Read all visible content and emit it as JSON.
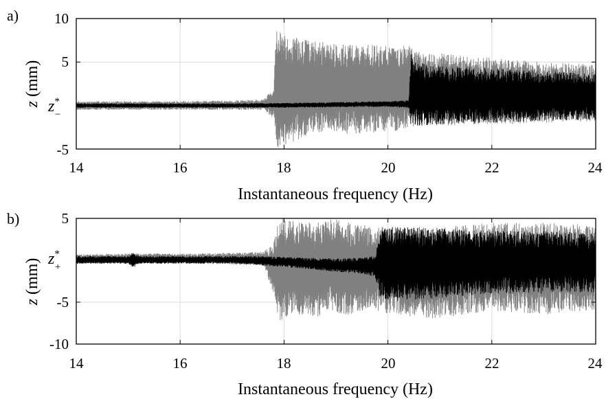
{
  "figure": {
    "colors": {
      "forward_sweep": "#808080",
      "backward_sweep": "#000000",
      "grid": "#dcdcdc"
    },
    "panels": [
      {
        "label": "a)",
        "xlabel": "Instantaneous frequency (Hz)",
        "ylabel_var": "z",
        "ylabel_unit": "(mm)",
        "zstar_base": "z",
        "zstar_sup": "*",
        "zstar_sub": "−",
        "xticks": [
          "14",
          "16",
          "18",
          "20",
          "22",
          "24"
        ],
        "yticks": [
          "10",
          "5",
          "-5"
        ]
      },
      {
        "label": "b)",
        "xlabel": "Instantaneous frequency (Hz)",
        "ylabel_var": "z",
        "ylabel_unit": "(mm)",
        "zstar_base": "z",
        "zstar_sup": "*",
        "zstar_sub": "+",
        "xticks": [
          "14",
          "16",
          "18",
          "20",
          "22",
          "24"
        ],
        "yticks": [
          "5",
          "-5",
          "-10"
        ]
      }
    ]
  },
  "chart_data": [
    {
      "type": "area",
      "panel": "a)",
      "xlabel": "Instantaneous frequency (Hz)",
      "ylabel": "z (mm)",
      "xlim": [
        14,
        24
      ],
      "ylim": [
        -5,
        10
      ],
      "xticks": [
        14,
        16,
        18,
        20,
        22,
        24
      ],
      "yticks": [
        -5,
        5,
        10
      ],
      "y_marker": {
        "label": "z*−",
        "value": 0
      },
      "grid": true,
      "series": [
        {
          "color": "#808080",
          "x": [
            14.0,
            15.0,
            16.0,
            17.0,
            17.6,
            17.8,
            17.85,
            18.0,
            18.5,
            19.0,
            19.5,
            20.0,
            20.45,
            20.5,
            21.0,
            22.0,
            23.0,
            24.0
          ],
          "ymax": [
            0.5,
            0.5,
            0.5,
            0.6,
            0.7,
            2.0,
            8.8,
            8.2,
            7.5,
            7.2,
            7.0,
            7.0,
            6.8,
            6.2,
            6.0,
            5.5,
            5.0,
            4.7
          ],
          "ymin": [
            -0.5,
            -0.5,
            -0.5,
            -0.5,
            -0.5,
            -1.5,
            -5.0,
            -4.6,
            -3.5,
            -3.3,
            -3.2,
            -3.0,
            -2.8,
            -2.4,
            -2.3,
            -2.2,
            -2.0,
            -1.8
          ]
        },
        {
          "color": "#000000",
          "x": [
            14.0,
            15.0,
            16.0,
            17.0,
            18.0,
            19.0,
            20.0,
            20.4,
            20.45,
            20.5,
            21.0,
            22.0,
            23.0,
            24.0
          ],
          "ymax": [
            0.25,
            0.25,
            0.25,
            0.25,
            0.3,
            0.4,
            0.5,
            0.6,
            6.0,
            5.0,
            4.6,
            4.3,
            4.0,
            3.6
          ],
          "ymin": [
            -0.25,
            -0.25,
            -0.25,
            -0.25,
            -0.25,
            -0.2,
            -0.15,
            -0.3,
            -2.6,
            -2.4,
            -2.2,
            -2.0,
            -1.8,
            -1.6
          ]
        }
      ]
    },
    {
      "type": "area",
      "panel": "b)",
      "xlabel": "Instantaneous frequency (Hz)",
      "ylabel": "z (mm)",
      "xlim": [
        14,
        24
      ],
      "ylim": [
        -10,
        5
      ],
      "xticks": [
        14,
        16,
        18,
        20,
        22,
        24
      ],
      "yticks": [
        -10,
        -5,
        5
      ],
      "y_marker": {
        "label": "z*+",
        "value": 0
      },
      "grid": true,
      "series": [
        {
          "color": "#808080",
          "x": [
            14.0,
            15.0,
            16.0,
            17.0,
            17.6,
            17.8,
            17.9,
            18.2,
            18.6,
            18.9,
            19.3,
            19.7,
            19.8,
            20.0,
            21.0,
            22.0,
            23.0,
            24.0
          ],
          "ymax": [
            0.7,
            0.8,
            0.8,
            0.9,
            1.0,
            2.0,
            5.0,
            5.0,
            4.5,
            5.0,
            4.5,
            4.0,
            4.0,
            4.0,
            4.0,
            4.5,
            4.5,
            4.2
          ],
          "ymin": [
            -0.4,
            -0.4,
            -0.4,
            -0.5,
            -0.6,
            -4.0,
            -7.5,
            -6.5,
            -7.0,
            -6.0,
            -6.8,
            -5.5,
            -6.0,
            -6.5,
            -7.0,
            -6.0,
            -6.5,
            -6.0
          ]
        },
        {
          "color": "#000000",
          "x": [
            14.0,
            15.0,
            15.1,
            15.2,
            16.0,
            17.0,
            17.5,
            18.0,
            18.5,
            19.0,
            19.5,
            19.75,
            19.85,
            20.0,
            21.0,
            22.0,
            23.0,
            24.0
          ],
          "ymax": [
            0.5,
            0.5,
            1.0,
            0.5,
            0.5,
            0.5,
            0.5,
            0.4,
            0.3,
            0.2,
            0.3,
            0.6,
            3.5,
            4.0,
            3.8,
            3.5,
            3.5,
            3.2
          ],
          "ymin": [
            -0.4,
            -0.4,
            -0.9,
            -0.4,
            -0.4,
            -0.4,
            -0.6,
            -0.8,
            -1.1,
            -1.4,
            -1.6,
            -2.0,
            -4.5,
            -5.0,
            -4.5,
            -4.0,
            -4.0,
            -3.8
          ]
        }
      ]
    }
  ]
}
